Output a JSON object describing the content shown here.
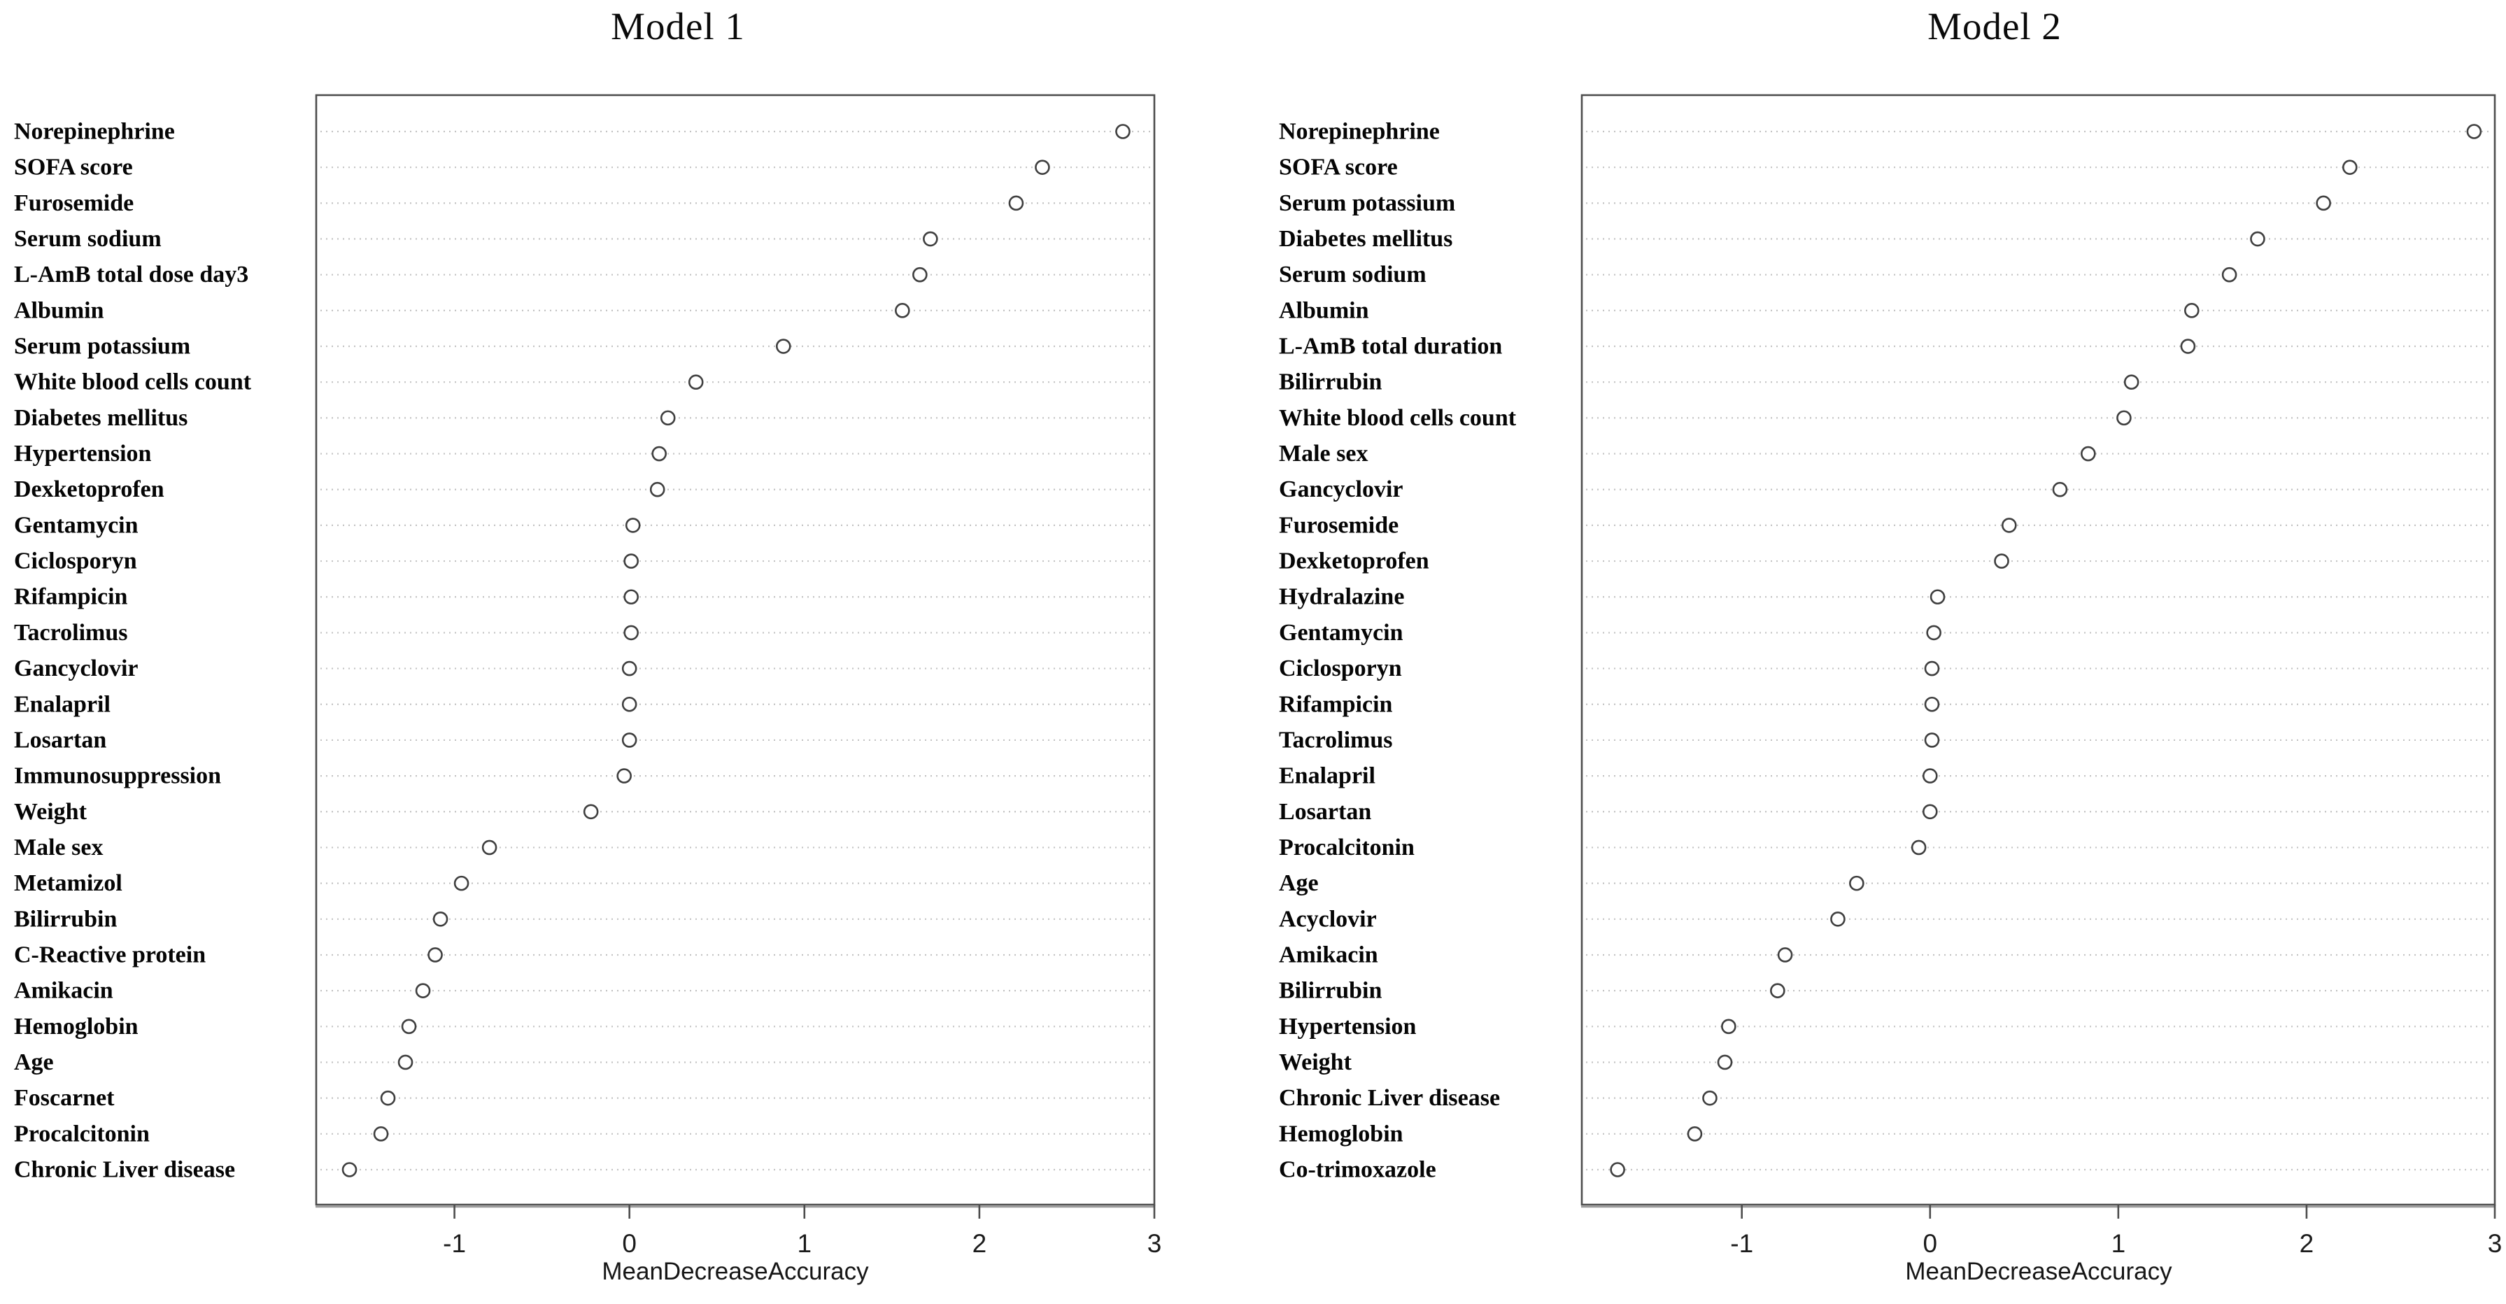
{
  "figure": {
    "background": "#ffffff",
    "accent_colors": {
      "grid": "#c3c3c3",
      "box": "#4d4d4d",
      "point_stroke": "#3f3f3f",
      "text": "#0a0a0a"
    }
  },
  "chart_data": [
    {
      "type": "scatter",
      "variant": "dot-plot-horizontal",
      "title": "Model 1",
      "xlabel": "MeanDecreaseAccuracy",
      "ylabel": "",
      "legend": "none",
      "grid": "dotted-horizontal",
      "xlim": [
        -1.79,
        3.0
      ],
      "xticks": [
        -1,
        0,
        1,
        2,
        3
      ],
      "categories": [
        "Norepinephrine",
        "SOFA score",
        "Furosemide",
        "Serum sodium",
        "L-AmB total dose day3",
        "Albumin",
        "Serum potassium",
        "White blood cells count",
        "Diabetes mellitus",
        "Hypertension",
        "Dexketoprofen",
        "Gentamycin",
        "Ciclosporyn",
        "Rifampicin",
        "Tacrolimus",
        "Gancyclovir",
        "Enalapril",
        "Losartan",
        "Immunosuppression",
        "Weight",
        "Male sex",
        "Metamizol",
        "Bilirrubin",
        "C-Reactive protein",
        "Amikacin",
        "Hemoglobin",
        "Age",
        "Foscarnet",
        "Procalcitonin",
        "Chronic Liver disease"
      ],
      "values": [
        2.82,
        2.36,
        2.21,
        1.72,
        1.66,
        1.56,
        0.88,
        0.38,
        0.22,
        0.17,
        0.16,
        0.02,
        0.01,
        0.01,
        0.01,
        0.0,
        0.0,
        0.0,
        -0.03,
        -0.22,
        -0.8,
        -0.96,
        -1.08,
        -1.11,
        -1.18,
        -1.26,
        -1.28,
        -1.38,
        -1.42,
        -1.6
      ]
    },
    {
      "type": "scatter",
      "variant": "dot-plot-horizontal",
      "title": "Model 2",
      "xlabel": "MeanDecreaseAccuracy",
      "ylabel": "",
      "legend": "none",
      "grid": "dotted-horizontal",
      "xlim": [
        -1.85,
        3.0
      ],
      "xticks": [
        -1,
        0,
        1,
        2,
        3
      ],
      "categories": [
        "Norepinephrine",
        "SOFA score",
        "Serum potassium",
        "Diabetes mellitus",
        "Serum sodium",
        "Albumin",
        "L-AmB total duration",
        "Bilirrubin",
        "White blood cells count",
        "Male sex",
        "Gancyclovir",
        "Furosemide",
        "Dexketoprofen",
        "Hydralazine",
        "Gentamycin",
        "Ciclosporyn",
        "Rifampicin",
        "Tacrolimus",
        "Enalapril",
        "Losartan",
        "Procalcitonin",
        "Age",
        "Acyclovir",
        "Amikacin",
        "Bilirrubin",
        "Hypertension",
        "Weight",
        "Chronic Liver disease",
        "Hemoglobin",
        "Co-trimoxazole"
      ],
      "values": [
        2.89,
        2.23,
        2.09,
        1.74,
        1.59,
        1.39,
        1.37,
        1.07,
        1.03,
        0.84,
        0.69,
        0.42,
        0.38,
        0.04,
        0.02,
        0.01,
        0.01,
        0.01,
        0.0,
        0.0,
        -0.06,
        -0.39,
        -0.49,
        -0.77,
        -0.81,
        -1.07,
        -1.09,
        -1.17,
        -1.25,
        -1.66
      ]
    }
  ]
}
